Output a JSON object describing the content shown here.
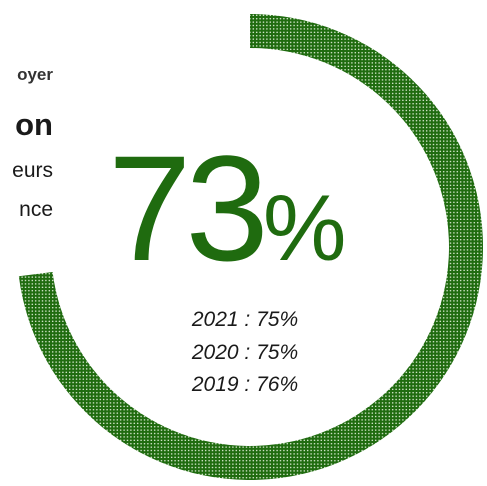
{
  "left_text": {
    "kicker": "oyer",
    "heading": "on",
    "line1": "eurs",
    "line2": "nce"
  },
  "chart_data": {
    "type": "donut",
    "value": 73,
    "value_unit": "%",
    "color": "#1f6b0f",
    "history": [
      {
        "label": "2021 : 75%",
        "year": 2021,
        "value": 75
      },
      {
        "label": "2020 : 75%",
        "year": 2020,
        "value": 75
      },
      {
        "label": "2019 : 76%",
        "year": 2019,
        "value": 76
      }
    ]
  }
}
